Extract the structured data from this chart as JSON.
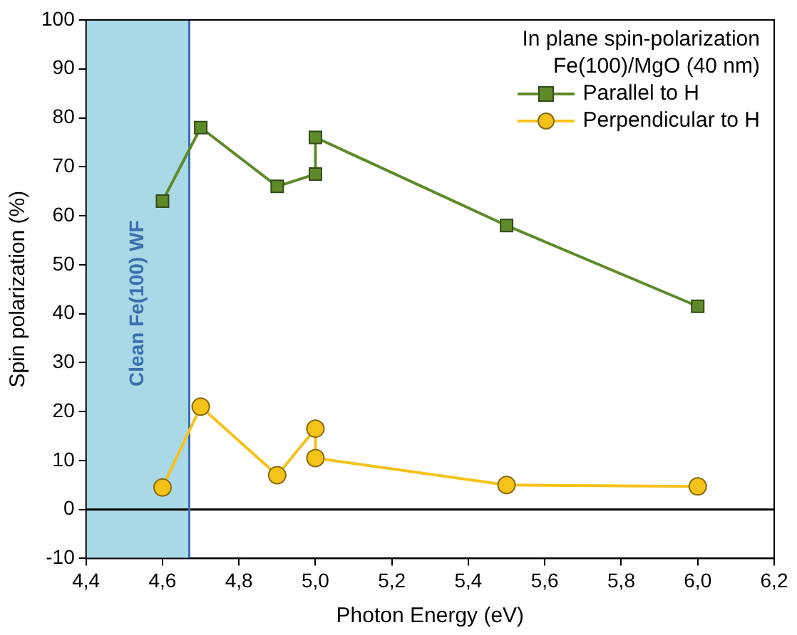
{
  "chart_data": {
    "type": "line",
    "xlabel": "Photon Energy (eV)",
    "ylabel": "Spin polarization (%)",
    "legend_title": "In plane spin-polarization\nFe(100)/MgO (40 nm)",
    "legend": "top right",
    "grid": false,
    "xlim": [
      4.4,
      6.2
    ],
    "xticks": [
      {
        "value": 4.4,
        "label": "4,4"
      },
      {
        "value": 4.6,
        "label": "4,6"
      },
      {
        "value": 4.8,
        "label": "4,8"
      },
      {
        "value": 5.0,
        "label": "5,0"
      },
      {
        "value": 5.2,
        "label": "5,2"
      },
      {
        "value": 5.4,
        "label": "5,4"
      },
      {
        "value": 5.6,
        "label": "5,6"
      },
      {
        "value": 5.8,
        "label": "5,8"
      },
      {
        "value": 6.0,
        "label": "6,0"
      },
      {
        "value": 6.2,
        "label": "6,2"
      }
    ],
    "ylim": [
      -10,
      100
    ],
    "yticks": [
      -10,
      0,
      10,
      20,
      30,
      40,
      50,
      60,
      70,
      80,
      90,
      100
    ],
    "x": [
      4.6,
      4.7,
      4.9,
      5.0,
      5.0,
      5.5,
      6.0
    ],
    "series": [
      {
        "name": "Parallel to H",
        "color": "#5e8a2a",
        "marker": "square",
        "values": [
          63,
          78,
          66,
          68.5,
          76,
          58,
          41.5
        ]
      },
      {
        "name": "Perpendicular to H",
        "color": "#f5c21a",
        "marker": "circle",
        "values": [
          4.5,
          21,
          7,
          16.5,
          10.5,
          5,
          4.7
        ]
      }
    ],
    "ref_lines": [
      {
        "axis": "y",
        "value": 0,
        "color": "#000000"
      },
      {
        "axis": "x",
        "value": 4.67,
        "color": "#3a6fb0"
      }
    ],
    "bands": [
      {
        "axis": "x",
        "from": 4.4,
        "to": 4.67,
        "label": "Clean Fe(100) WF",
        "color": "#a9d8e6"
      }
    ]
  }
}
